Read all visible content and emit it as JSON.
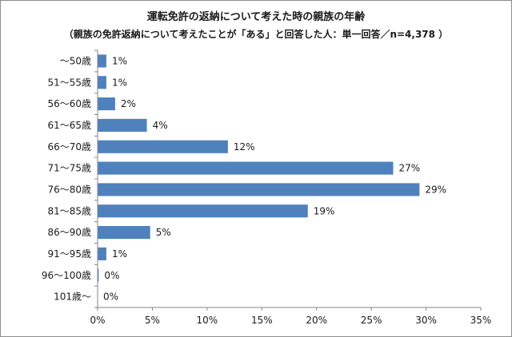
{
  "chart_data": {
    "type": "bar",
    "orientation": "horizontal",
    "title": "運転免許の返納について考えた時の親族の年齢",
    "subtitle": "（親族の免許返納について考えたことが「ある」と回答した人：単一回答／n=4,378 ）",
    "categories": [
      "～50歳",
      "51～55歳",
      "56～60歳",
      "61～65歳",
      "66～70歳",
      "71～75歳",
      "76～80歳",
      "81～85歳",
      "86～90歳",
      "91～95歳",
      "96～100歳",
      "101歳～"
    ],
    "values": [
      0.8,
      0.8,
      1.6,
      4.5,
      11.9,
      27.0,
      29.4,
      19.2,
      4.8,
      0.8,
      0.1,
      0.0
    ],
    "data_labels": [
      "1%",
      "1%",
      "2%",
      "4%",
      "12%",
      "27%",
      "29%",
      "19%",
      "5%",
      "1%",
      "0%",
      "0%"
    ],
    "xlim": [
      0,
      35
    ],
    "x_ticks": [
      0,
      5,
      10,
      15,
      20,
      25,
      30,
      35
    ],
    "x_tick_labels": [
      "0%",
      "5%",
      "10%",
      "15%",
      "20%",
      "25%",
      "30%",
      "35%"
    ],
    "grid": false,
    "legend": "none",
    "bar_color": "#4f81bd"
  }
}
